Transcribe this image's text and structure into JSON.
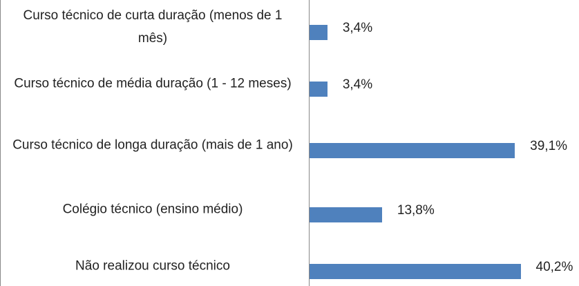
{
  "chart_data": {
    "type": "bar",
    "orientation": "horizontal",
    "categories": [
      "Curso técnico de curta duração (menos de 1 mês)",
      "Curso técnico de média duração (1 - 12 meses)",
      "Curso técnico de longa duração (mais de 1 ano)",
      "Colégio técnico (ensino médio)",
      "Não realizou curso técnico"
    ],
    "values": [
      3.4,
      3.4,
      39.1,
      13.8,
      40.2
    ],
    "value_labels": [
      "3,4%",
      "3,4%",
      "39,1%",
      "13,8%",
      "40,2%"
    ],
    "color": "#4f81bd"
  }
}
